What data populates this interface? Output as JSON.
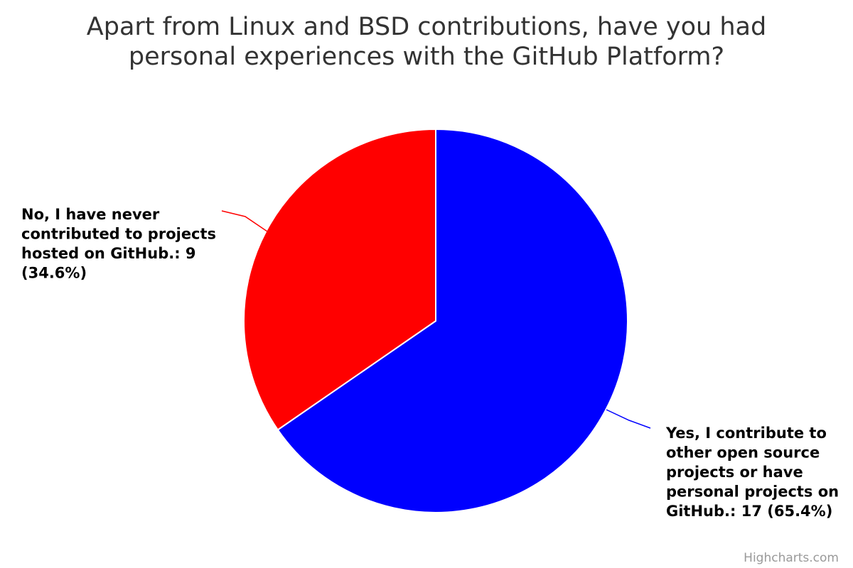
{
  "chart_data": {
    "type": "pie",
    "title": "Apart from Linux and BSD contributions, have you had personal experiences with the GitHub Platform?",
    "title_lines": [
      "Apart from Linux and BSD contributions, have you had",
      "personal experiences with the GitHub Platform?"
    ],
    "slices": [
      {
        "name": "Yes, I contribute to other open source projects or have personal projects on GitHub.",
        "value": 17,
        "percent": 65.4,
        "color": "#0000ff",
        "label_lines": [
          "Yes, I contribute to",
          "other open source",
          "projects or have",
          "personal projects on",
          "GitHub.: 17 (65.4%)"
        ]
      },
      {
        "name": "No, I have never contributed to projects hosted on GitHub.",
        "value": 9,
        "percent": 34.6,
        "color": "#ff0000",
        "label_lines": [
          "No, I have never",
          "contributed to projects",
          "hosted on GitHub.: 9",
          "(34.6%)"
        ]
      }
    ]
  },
  "credits": "Highcharts.com"
}
